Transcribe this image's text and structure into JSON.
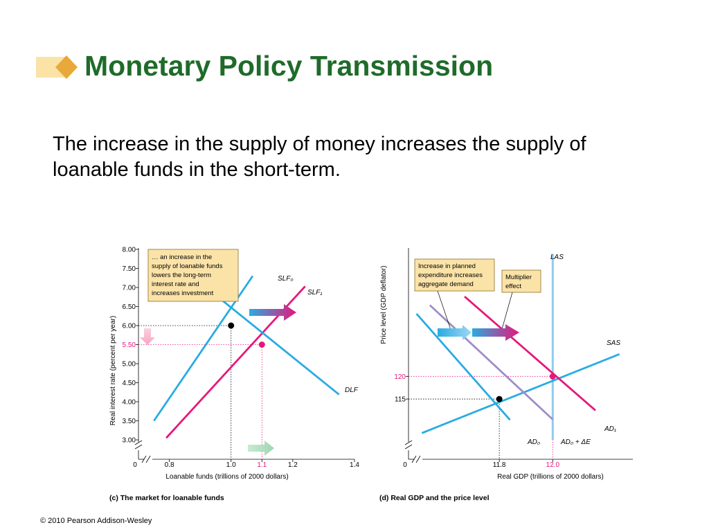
{
  "slide": {
    "title": "Monetary Policy Transmission",
    "body": "The increase in the supply of money increases the supply of loanable funds in the short-term.",
    "copyright": "© 2010 Pearson Addison-Wesley",
    "title_color": "#1f6b2a"
  },
  "colors": {
    "cyan": "#29abe2",
    "magenta": "#e6177b",
    "purple": "#a08dc6",
    "las": "#8ecbee",
    "note_box": "#fbe3a8"
  },
  "chart_data": [
    {
      "type": "line",
      "caption": "(c) The market for loanable funds",
      "xlabel": "Loanable funds (trillions of 2000 dollars)",
      "ylabel": "Real interest rate (percent per year)",
      "xlim": [
        0.7,
        1.4
      ],
      "ylim": [
        3.0,
        8.0
      ],
      "axis_break": true,
      "x_ticks": [
        "0.8",
        "1.0",
        "1.1",
        "1.2",
        "1.4"
      ],
      "y_ticks": [
        "8.00",
        "7.50",
        "7.00",
        "6.50",
        "6.00",
        "5.50",
        "5.00",
        "4.50",
        "4.00",
        "3.50",
        "3.00"
      ],
      "origin_label": "0",
      "highlight_x_tick": "1.1",
      "highlight_y_tick": "5.50",
      "series": [
        {
          "name": "SLF₀",
          "color": "cyan",
          "points": [
            [
              0.75,
              3.5
            ],
            [
              1.07,
              7.3
            ]
          ]
        },
        {
          "name": "SLF₁",
          "color": "magenta",
          "points": [
            [
              0.79,
              3.05
            ],
            [
              1.24,
              7.03
            ]
          ]
        },
        {
          "name": "DLF",
          "color": "cyan",
          "points": [
            [
              0.82,
              7.65
            ],
            [
              1.35,
              4.19
            ]
          ]
        }
      ],
      "equilibria": [
        {
          "x": 1.0,
          "y": 6.0,
          "color": "black"
        },
        {
          "x": 1.1,
          "y": 5.5,
          "color": "magenta"
        }
      ],
      "annotation": "... an increase in the supply of loanable funds lowers the long-term interest rate and increases investment"
    },
    {
      "type": "line",
      "caption": "(d) Real GDP and the price level",
      "xlabel": "Real GDP (trillions of 2000 dollars)",
      "ylabel": "Price level (GDP deflator)",
      "xlim": [
        11.46,
        12.3
      ],
      "ylim": [
        106,
        148
      ],
      "axis_break": true,
      "x_ticks": [
        "11.8",
        "12.0"
      ],
      "y_ticks": [
        "120",
        "115"
      ],
      "origin_label": "0",
      "highlight_x_tick": "12.0",
      "highlight_y_tick": "120",
      "series": [
        {
          "name": "LAS",
          "color": "las",
          "points": [
            [
              12.0,
              106
            ],
            [
              12.0,
              147
            ]
          ]
        },
        {
          "name": "SAS",
          "color": "cyan",
          "points": [
            [
              11.51,
              107.5
            ],
            [
              12.25,
              124.9
            ]
          ]
        },
        {
          "name": "AD₀",
          "color": "cyan",
          "points": [
            [
              11.49,
              133.8
            ],
            [
              11.84,
              110.4
            ]
          ]
        },
        {
          "name": "AD₀ + ΔE",
          "color": "purple",
          "points": [
            [
              11.54,
              135.7
            ],
            [
              12.0,
              110.5
            ]
          ]
        },
        {
          "name": "AD₁",
          "color": "magenta",
          "points": [
            [
              11.67,
              137.6
            ],
            [
              12.16,
              112.5
            ]
          ]
        }
      ],
      "equilibria": [
        {
          "x": 11.8,
          "y": 115,
          "color": "black"
        },
        {
          "x": 12.0,
          "y": 120,
          "color": "magenta"
        }
      ],
      "annotations": [
        "Increase in planned expenditure increases aggregate demand",
        "Multiplier effect"
      ]
    }
  ]
}
